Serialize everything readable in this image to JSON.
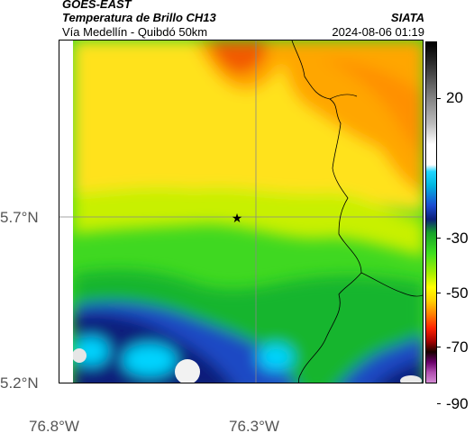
{
  "header": {
    "satellite": "GOES-EAST",
    "product": "Temperatura de Brillo CH13",
    "region": "Vía Medellín - Quibdó 50km",
    "source": "SIATA",
    "datetime": "2024-08-06 01:19"
  },
  "map": {
    "lat_labels": [
      "5.7°N",
      "5.2°N"
    ],
    "lon_labels": [
      "76.8°W",
      "76.3°W"
    ],
    "marker": "star-marker",
    "colors": {
      "orange": "#ff8c00",
      "dark_orange": "#f96b00",
      "yellow": "#ffd700",
      "lime": "#b6f000",
      "green": "#32d11a",
      "dark_green": "#0fa52a",
      "blue": "#1a3fb8",
      "navy": "#0a1f72",
      "cyan": "#00d4ff",
      "white": "#f2f2f2"
    }
  },
  "colorbar": {
    "ticks": [
      "20",
      "-30",
      "-50",
      "-70",
      "-90"
    ]
  }
}
